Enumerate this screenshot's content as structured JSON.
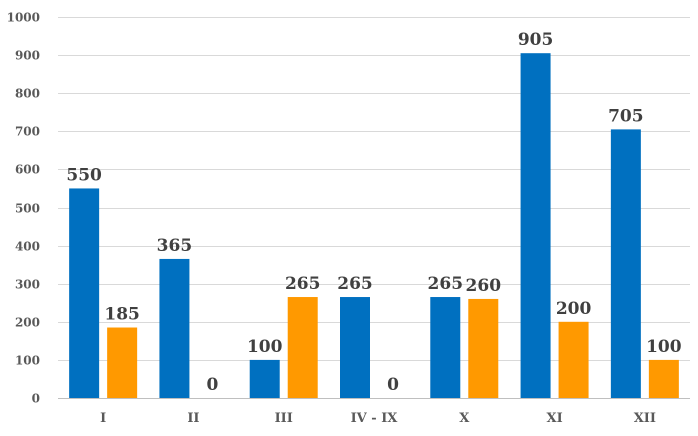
{
  "chart_data": {
    "type": "bar",
    "categories": [
      "I",
      "II",
      "III",
      "IV - IX",
      "X",
      "XI",
      "XII"
    ],
    "series": [
      {
        "color": "#0070c0",
        "values": [
          550,
          365,
          100,
          265,
          265,
          905,
          705
        ]
      },
      {
        "color": "#ff9900",
        "values": [
          185,
          0,
          265,
          0,
          260,
          200,
          100
        ]
      }
    ],
    "yticks": [
      0,
      100,
      200,
      300,
      400,
      500,
      600,
      700,
      800,
      900,
      1000
    ],
    "ylim": [
      0,
      1000
    ],
    "grid": true,
    "legend": "none",
    "data_labels": true,
    "title": "",
    "xlabel": "",
    "ylabel": ""
  }
}
